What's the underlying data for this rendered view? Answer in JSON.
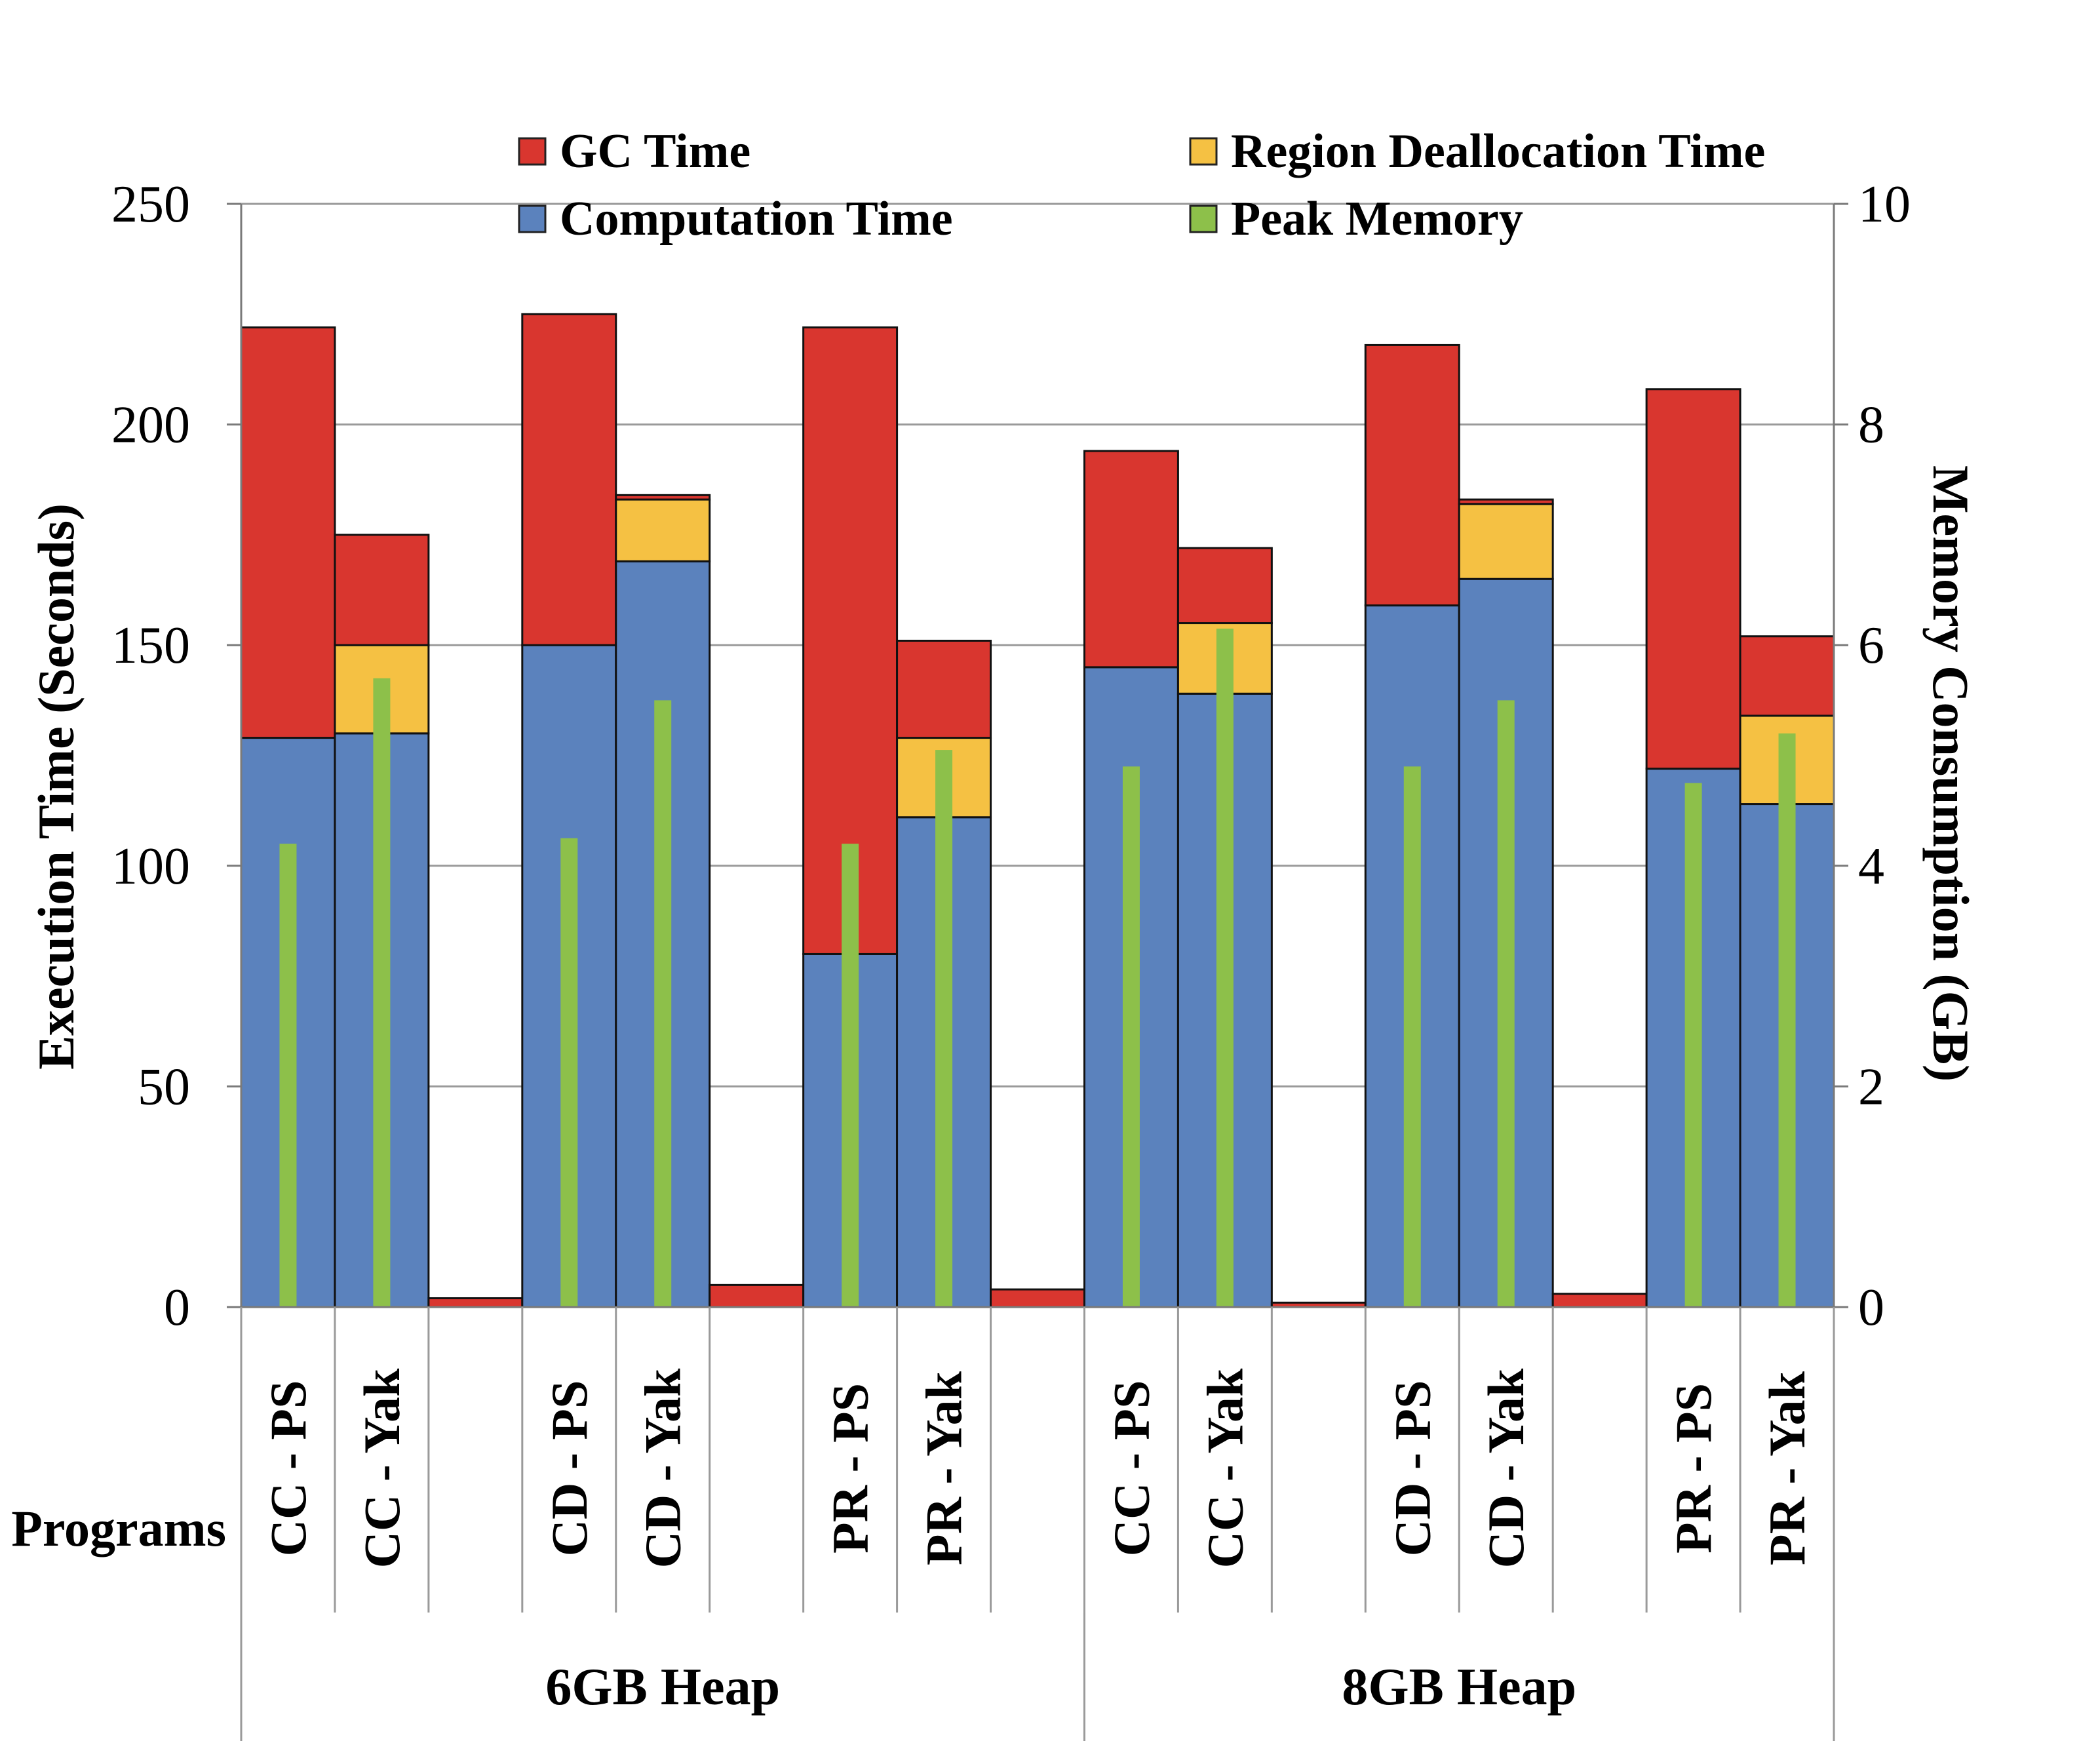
{
  "chart_data": {
    "type": "bar",
    "stacked": true,
    "title": "",
    "ylabel": "Execution Time (Seconds)",
    "y2label": "Memory Consumption (GB)",
    "xlabel": "Programs",
    "ylim": [
      0,
      250
    ],
    "y2lim": [
      0,
      10
    ],
    "yticks": [
      "0",
      "50",
      "100",
      "150",
      "200",
      "250"
    ],
    "y2ticks": [
      "0",
      "2",
      "4",
      "6",
      "8",
      "10"
    ],
    "grid": true,
    "legend_position": "top",
    "groups": [
      {
        "name": "6GB Heap",
        "categories": [
          "CC - PS",
          "CC - Yak",
          "",
          "CD - PS",
          "CD - Yak",
          "",
          "PR - PS",
          "PR - Yak",
          ""
        ]
      },
      {
        "name": "8GB Heap",
        "categories": [
          "CC - PS",
          "CC - Yak",
          "",
          "CD - PS",
          "CD - Yak",
          "",
          "PR - PS",
          "PR - Yak"
        ]
      }
    ],
    "series": [
      {
        "name": "Computation Time",
        "color": "#5b82bd",
        "axis": "left",
        "values": [
          129,
          130,
          0,
          150,
          169,
          0,
          80,
          111,
          0,
          145,
          139,
          0,
          159,
          165,
          0,
          122,
          114
        ]
      },
      {
        "name": "Region Deallocation Time",
        "color": "#f5c143",
        "axis": "left",
        "values": [
          0,
          20,
          0,
          0,
          14,
          0,
          0,
          18,
          0,
          0,
          16,
          0,
          0,
          17,
          0,
          0,
          20
        ]
      },
      {
        "name": "GC Time",
        "color": "#d9362f",
        "axis": "left",
        "values": [
          93,
          25,
          2,
          75,
          1,
          5,
          142,
          22,
          4,
          49,
          17,
          1,
          59,
          1,
          3,
          86,
          18
        ]
      },
      {
        "name": "Peak Memory",
        "color": "#8dc04a",
        "axis": "right",
        "values": [
          4.2,
          5.7,
          null,
          4.25,
          5.5,
          null,
          4.2,
          5.05,
          null,
          4.9,
          6.15,
          null,
          4.9,
          5.5,
          null,
          4.75,
          5.2
        ]
      }
    ],
    "legend": [
      {
        "label": "GC Time",
        "color": "#d9362f"
      },
      {
        "label": "Region Deallocation Time",
        "color": "#f5c143"
      },
      {
        "label": "Computation Time",
        "color": "#5b82bd"
      },
      {
        "label": "Peak Memory",
        "color": "#8dc04a"
      }
    ]
  }
}
